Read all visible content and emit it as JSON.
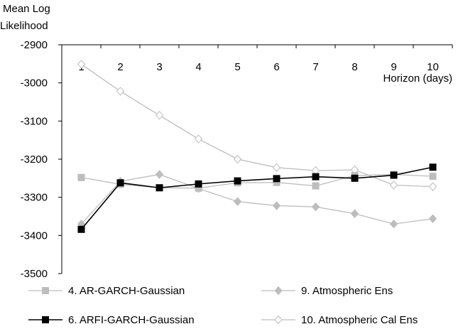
{
  "chart_data": {
    "type": "line",
    "ylabel_lines": [
      "Mean Log",
      "Likelihood"
    ],
    "xlabel": "Horizon (days)",
    "x": [
      1,
      2,
      3,
      4,
      5,
      6,
      7,
      8,
      9,
      10
    ],
    "ylim": [
      -3500,
      -2900
    ],
    "yticks": [
      -2900,
      -3000,
      -3100,
      -3200,
      -3300,
      -3400,
      -3500
    ],
    "ytick_labels": [
      "-2900",
      "-3000",
      "-3100",
      "-3200",
      "-3300",
      "-3400",
      "-3500"
    ],
    "xtick_labels": [
      "1",
      "2",
      "3",
      "4",
      "5",
      "6",
      "7",
      "8",
      "9",
      "10"
    ],
    "grid": false,
    "legend_position": "bottom",
    "series": [
      {
        "name": "4. AR-GARCH-Gaussian",
        "marker": "square",
        "filled": true,
        "color": "#bdbdbd",
        "values": [
          -3248,
          -3266,
          -3275,
          -3276,
          -3262,
          -3261,
          -3270,
          -3243,
          -3240,
          -3245
        ]
      },
      {
        "name": "9. Atmospheric Ens",
        "marker": "diamond",
        "filled": true,
        "color": "#bdbdbd",
        "values": [
          -3370,
          -3258,
          -3240,
          -3277,
          -3311,
          -3322,
          -3325,
          -3343,
          -3370,
          -3356
        ]
      },
      {
        "name": "6. ARFI-GARCH-Gaussian",
        "marker": "square",
        "filled": true,
        "color": "#000000",
        "values": [
          -3384,
          -3262,
          -3275,
          -3265,
          -3257,
          -3251,
          -3246,
          -3250,
          -3242,
          -3221
        ]
      },
      {
        "name": "10. Atmospheric Cal Ens",
        "marker": "diamond",
        "filled": false,
        "color": "#bdbdbd",
        "values": [
          -2951,
          -3022,
          -3085,
          -3147,
          -3200,
          -3222,
          -3230,
          -3228,
          -3268,
          -3272
        ]
      }
    ]
  }
}
